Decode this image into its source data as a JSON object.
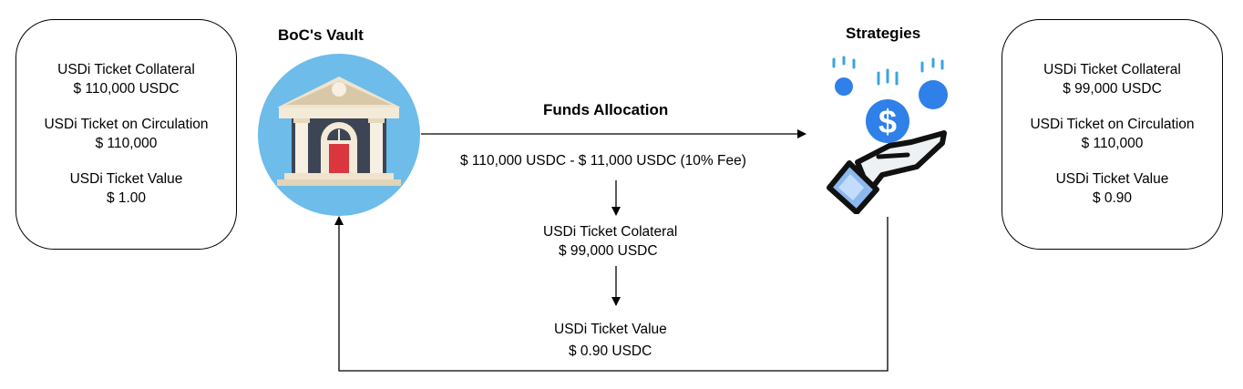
{
  "left_box": {
    "collateral_label": "USDi Ticket Collateral",
    "collateral_value": "$ 110,000 USDC",
    "circulation_label": "USDi Ticket on Circulation",
    "circulation_value": "$ 110,000",
    "value_label": "USDi Ticket Value",
    "value_value": "$ 1.00"
  },
  "right_box": {
    "collateral_label": "USDi Ticket Collateral",
    "collateral_value": "$ 99,000 USDC",
    "circulation_label": "USDi Ticket on Circulation",
    "circulation_value": "$ 110,000",
    "value_label": "USDi Ticket Value",
    "value_value": "$ 0.90"
  },
  "vault": {
    "title": "BoC's Vault",
    "icon": "bank-icon"
  },
  "strategies": {
    "title": "Strategies",
    "icon": "hand-coins-icon"
  },
  "flow": {
    "allocation_title": "Funds Allocation",
    "allocation_amount": "$ 110,000 USDC - $ 11,000 USDC (10% Fee)",
    "collateral_label": "USDi Ticket Colateral",
    "collateral_value": "$ 99,000 USDC",
    "value_label": "USDi Ticket Value",
    "value_value": "$ 0.90 USDC"
  },
  "colors": {
    "vault_circle": "#6dbce9",
    "bank_roof": "#efe3cc",
    "coin_blue": "#2f80e8"
  }
}
